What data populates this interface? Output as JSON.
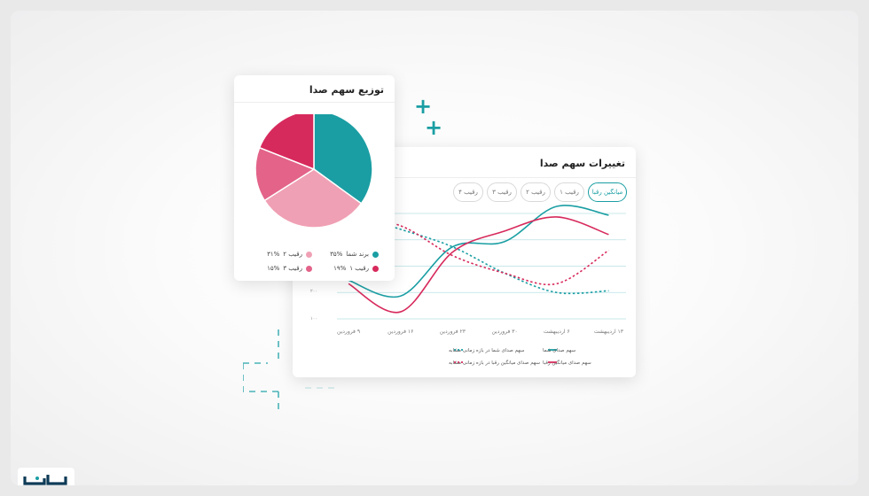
{
  "pie_card": {
    "title": "توزیع سهم صدا",
    "legend": [
      {
        "label": "برند شما",
        "value": "۳۵%",
        "color": "#1a9ea3"
      },
      {
        "label": "رقیب ۲",
        "value": "۳۱%",
        "color": "#f0a0b4"
      },
      {
        "label": "رقیب ۱",
        "value": "۱۹%",
        "color": "#d72a5c"
      },
      {
        "label": "رقیب ۳",
        "value": "۱۵%",
        "color": "#e36389"
      }
    ]
  },
  "line_card": {
    "title": "تغییرات سهم صدا",
    "pills": [
      "میانگین رقبا",
      "رقیب ۱",
      "رقیب ۲",
      "رقیب ۳",
      "رقیب ۴"
    ],
    "y_ticks": [
      "۲۰۰",
      "۱۰۰"
    ],
    "x_ticks": [
      "۹ فروردین",
      "۱۶ فروردین",
      "۲۳ فروردین",
      "۳۰ فروردین",
      "۶ اردیبهشت",
      "۱۳ اردیبهشت"
    ],
    "legend": [
      {
        "label": "سهم صدای شما",
        "style": "solid",
        "color": "#1a9ea3"
      },
      {
        "label": "سهم صدای شما در بازه زمانی مشابه",
        "style": "dotted",
        "color": "#1a9ea3"
      },
      {
        "label": "سهم صدای میانگین رقبا",
        "style": "solid",
        "color": "#d72a5c"
      },
      {
        "label": "سهم صدای میانگین رقبا در بازه زمانی مشابه",
        "style": "dotted",
        "color": "#d72a5c"
      }
    ]
  },
  "chart_data": [
    {
      "type": "pie",
      "title": "توزیع سهم صدا",
      "slices": [
        {
          "label": "برند شما",
          "value": 35,
          "color": "#1a9ea3"
        },
        {
          "label": "رقیب ۲",
          "value": 31,
          "color": "#f0a0b4"
        },
        {
          "label": "رقیب ۳",
          "value": 15,
          "color": "#e36389"
        },
        {
          "label": "رقیب ۱",
          "value": 19,
          "color": "#d72a5c"
        }
      ]
    },
    {
      "type": "line",
      "title": "تغییرات سهم صدا",
      "x": [
        "۹ فروردین",
        "۱۶ فروردین",
        "۲۳ فروردین",
        "۳۰ فروردین",
        "۶ اردیبهشت",
        "۱۳ اردیبهشت"
      ],
      "ylim": [
        100,
        400
      ],
      "grid": true,
      "series": [
        {
          "name": "سهم صدای شما",
          "style": "solid",
          "color": "#1a9ea3",
          "values": [
            210,
            165,
            305,
            320,
            440,
            395
          ]
        },
        {
          "name": "سهم صدای شما در بازه زمانی مشابه",
          "style": "dotted",
          "color": "#1a9ea3",
          "values": [
            400,
            355,
            305,
            230,
            175,
            180
          ]
        },
        {
          "name": "سهم صدای میانگین رقبا",
          "style": "solid",
          "color": "#d72a5c",
          "values": [
            200,
            120,
            290,
            350,
            390,
            340
          ]
        },
        {
          "name": "سهم صدای میانگین رقبا در بازه زمانی مشابه",
          "style": "dotted",
          "color": "#d72a5c",
          "values": [
            390,
            365,
            280,
            230,
            200,
            295
          ]
        }
      ]
    }
  ]
}
